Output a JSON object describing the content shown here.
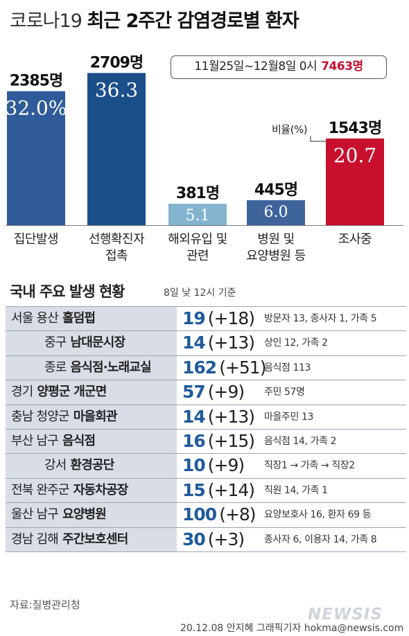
{
  "title": {
    "light": "코로나19",
    "bold": "최근 2주간 감염경로별 환자"
  },
  "period": {
    "text": "11월25일~12월8일 0시",
    "total": "7463명"
  },
  "ratio_label": "비율(%)",
  "colors": {
    "blue": "#2f5b9a",
    "dark_blue": "#1b4f8a",
    "light_blue": "#82b3cf",
    "red": "#c8102e",
    "table_bg": "#d8dde6",
    "accent_text": "#1f5a9c"
  },
  "chart_data": {
    "type": "bar",
    "categories": [
      "집단발생",
      "선행확진자\n접촉",
      "해외유입 및\n관련",
      "병원 및\n요양병원 등",
      "조사중"
    ],
    "category_lines": [
      [
        "집단발생"
      ],
      [
        "선행확진자",
        "접촉"
      ],
      [
        "해외유입 및",
        "관련"
      ],
      [
        "병원 및",
        "요양병원 등"
      ],
      [
        "조사중"
      ]
    ],
    "values": [
      2385,
      2709,
      381,
      445,
      1543
    ],
    "value_labels": [
      "2385명",
      "2709명",
      "381명",
      "445명",
      "1543명"
    ],
    "percent": [
      32.0,
      36.3,
      5.1,
      6.0,
      20.7
    ],
    "percent_labels": [
      "32.0%",
      "36.3",
      "5.1",
      "6.0",
      "20.7"
    ],
    "bar_colors": [
      "#2f5b9a",
      "#1b4f8a",
      "#82b3cf",
      "#3f649c",
      "#c8102e"
    ],
    "ylim": [
      0,
      2800
    ]
  },
  "section": {
    "title": "국내 주요 발생 현황",
    "note": "8일 낮 12시 기준"
  },
  "clusters": [
    {
      "region": "서울 용산",
      "site": "홀덤펍",
      "count": "19",
      "delta": "(+18)",
      "detail": "방문자 13, 종사자 1, 가족 5",
      "indent": false
    },
    {
      "region": "중구",
      "site": "남대문시장",
      "count": "14",
      "delta": "(+13)",
      "detail": "상인 12, 가족 2",
      "indent": true
    },
    {
      "region": "종로",
      "site": "음식점·노래교실",
      "count": "162",
      "delta": "(+51)",
      "detail": "음식점 113",
      "indent": true
    },
    {
      "region": "경기",
      "site": "양평군 개군면",
      "count": "57",
      "delta": "(+9)",
      "detail": "주민 57명",
      "indent": false
    },
    {
      "region": "충남 청양군",
      "site": "마을회관",
      "count": "14",
      "delta": "(+13)",
      "detail": "마을주민 13",
      "indent": false
    },
    {
      "region": "부산 남구",
      "site": "음식점",
      "count": "16",
      "delta": "(+15)",
      "detail": "음식점 14, 가족 2",
      "indent": false
    },
    {
      "region": "강서",
      "site": "환경공단",
      "count": "10",
      "delta": "(+9)",
      "detail": "직장1 → 가족 → 직장2",
      "indent": true
    },
    {
      "region": "전북 완주군",
      "site": "자동차공장",
      "count": "15",
      "delta": "(+14)",
      "detail": "직원 14, 가족 1",
      "indent": false
    },
    {
      "region": "울산 남구",
      "site": "요양병원",
      "count": "100",
      "delta": "(+8)",
      "detail": "요양보호사 16, 환자 69 등",
      "indent": false
    },
    {
      "region": "경남 김해",
      "site": "주간보호센터",
      "count": "30",
      "delta": "(+3)",
      "detail": "종사자 6, 이용자 14, 가족 8",
      "indent": false
    }
  ],
  "source": "자료:질병관리청",
  "credit": "20.12.08 안지혜 그래픽기자 hokma@newsis.com",
  "logo": "NEWSIS"
}
